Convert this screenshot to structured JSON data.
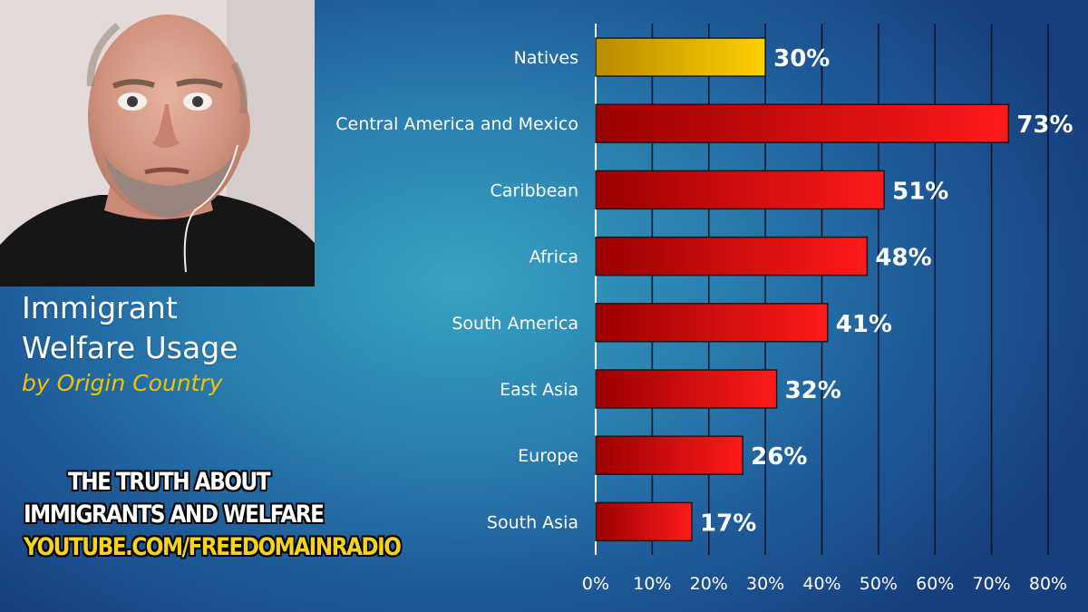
{
  "colors": {
    "native_bar_dark": "#b88a00",
    "native_bar_light": "#ffd000",
    "immigrant_bar_dark": "#9a0000",
    "immigrant_bar_light": "#ff1a1a",
    "title_subtitle": "#f2c200",
    "banner_yellow": "#f7d417"
  },
  "title": {
    "line1": "Immigrant",
    "line2": "Welfare Usage",
    "subtitle": "by Origin Country"
  },
  "banner": {
    "line1": "THE TRUTH ABOUT",
    "line2": "IMMIGRANTS AND WELFARE",
    "line3": "YOUTUBE.COM/FREEDOMAINRADIO"
  },
  "chart_data": {
    "type": "bar",
    "orientation": "horizontal",
    "categories": [
      "Natives",
      "Central America and Mexico",
      "Caribbean",
      "Africa",
      "South America",
      "East Asia",
      "Europe",
      "South Asia"
    ],
    "values": [
      30,
      73,
      51,
      48,
      41,
      32,
      26,
      17
    ],
    "value_labels": [
      "30%",
      "73%",
      "51%",
      "48%",
      "41%",
      "32%",
      "26%",
      "17%"
    ],
    "highlight_category": "Natives",
    "xlim": [
      0,
      80
    ],
    "x_ticks": [
      0,
      10,
      20,
      30,
      40,
      50,
      60,
      70,
      80
    ],
    "x_tick_labels": [
      "0%",
      "10%",
      "20%",
      "30%",
      "40%",
      "50%",
      "60%",
      "70%",
      "80%"
    ],
    "grid": "vertical",
    "title": "",
    "xlabel": "",
    "ylabel": ""
  }
}
